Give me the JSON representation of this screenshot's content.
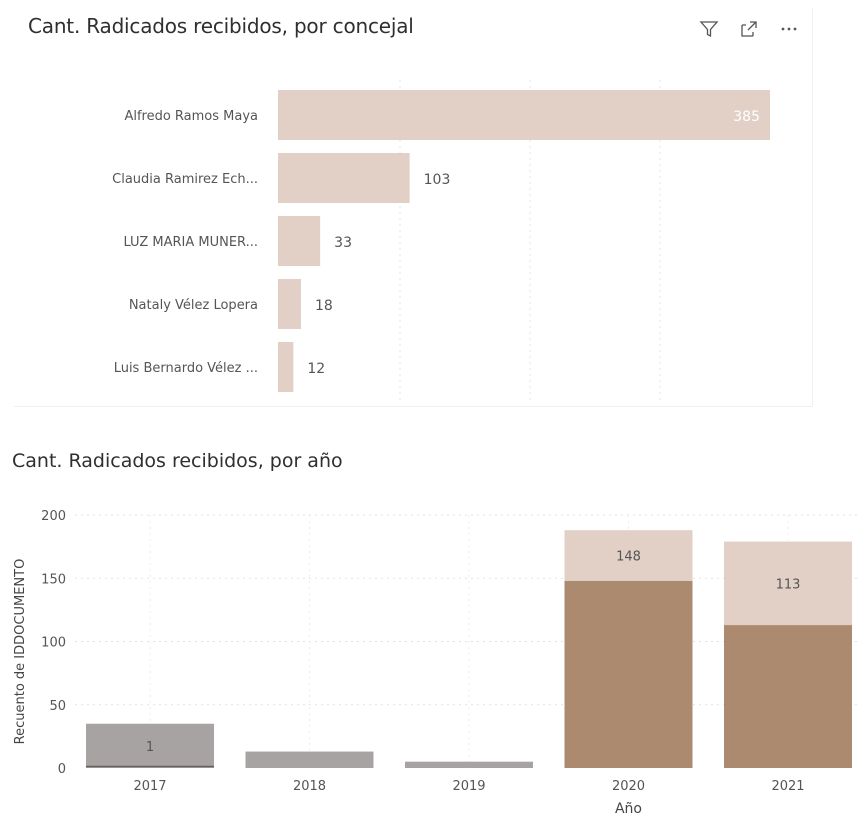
{
  "toolbar": {
    "icons": [
      "filter-icon",
      "focus-mode-icon",
      "more-options-icon"
    ]
  },
  "chart_data": [
    {
      "type": "bar",
      "orientation": "horizontal",
      "title": "Cant. Radicados recibidos, por concejal",
      "categories": [
        "Alfredo Ramos Maya",
        "Claudia Ramirez Ech...",
        "LUZ MARIA MUNER...",
        "Nataly Vélez Lopera",
        "Luis Bernardo Vélez ..."
      ],
      "values": [
        385,
        103,
        33,
        18,
        12
      ],
      "color": "#e2d0c6",
      "grid": true
    },
    {
      "type": "bar",
      "stacked": true,
      "title": "Cant. Radicados recibidos, por año",
      "xlabel": "Año",
      "ylabel": "Recuento de IDDOCUMENTO",
      "categories": [
        "2017",
        "2018",
        "2019",
        "2020",
        "2021"
      ],
      "ylim": [
        0,
        200
      ],
      "yticks": [
        0,
        50,
        100,
        150,
        200
      ],
      "series": [
        {
          "values": [
            1,
            0,
            0,
            148,
            113
          ],
          "color": "#ac8a70"
        },
        {
          "values": [
            35,
            13,
            5,
            40,
            66
          ],
          "color": "#e2d0c6"
        }
      ],
      "bar_labels": [
        "1",
        "",
        "",
        "148",
        "113"
      ],
      "grey_bars": [
        35,
        13,
        5,
        0,
        0
      ],
      "grey_color": "#a8a3a3",
      "grid": true
    }
  ]
}
